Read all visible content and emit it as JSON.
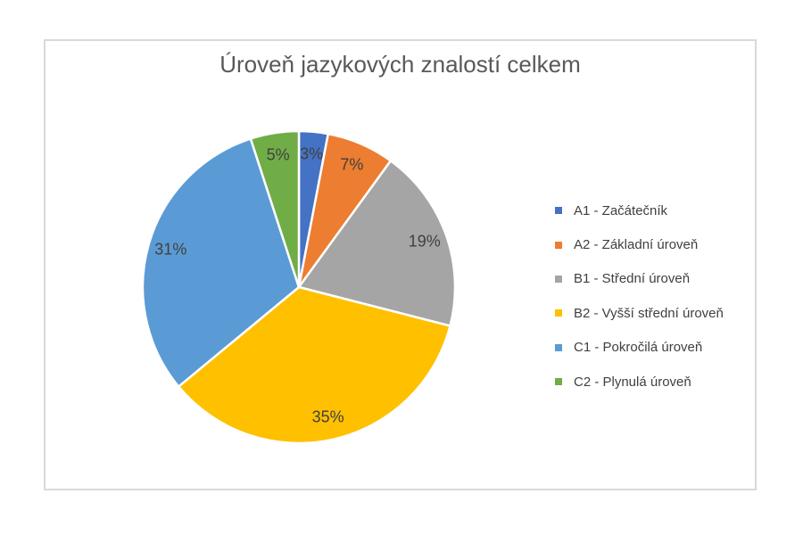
{
  "chart_frame": {
    "border_color": "#d9d9d9",
    "background_color": "#ffffff"
  },
  "chart_data": {
    "type": "pie",
    "title": "Úroveň jazykových znalostí celkem",
    "title_color": "#595959",
    "data_label_color": "#404040",
    "legend_text_color": "#404040",
    "slice_border_color": "#ffffff",
    "start_angle_deg": 0,
    "direction": "clockwise",
    "legend_position": "right",
    "slices": [
      {
        "label": "A1 - Začátečník",
        "value": 3,
        "value_label": "3%",
        "color": "#4472c4"
      },
      {
        "label": "A2 - Základní úroveň",
        "value": 7,
        "value_label": "7%",
        "color": "#ed7d31"
      },
      {
        "label": "B1 - Střední úroveň",
        "value": 19,
        "value_label": "19%",
        "color": "#a5a5a5"
      },
      {
        "label": "B2 - Vyšší střední úroveň",
        "value": 35,
        "value_label": "35%",
        "color": "#ffc000"
      },
      {
        "label": "C1 - Pokročilá úroveň",
        "value": 31,
        "value_label": "31%",
        "color": "#5b9bd5"
      },
      {
        "label": "C2 - Plynulá úroveň",
        "value": 5,
        "value_label": "5%",
        "color": "#70ad47"
      }
    ]
  }
}
